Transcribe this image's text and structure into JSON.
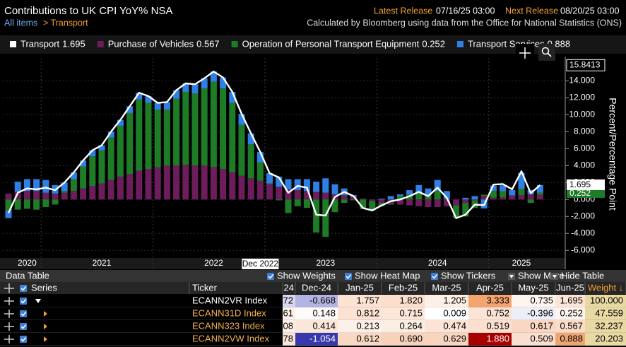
{
  "header": {
    "title": "Contributions to UK CPI YoY% NSA",
    "breadcrumb_root": "All items",
    "breadcrumb_current": "> Transport",
    "latest_label": "Latest Release",
    "latest_value": "07/16/25 03:00",
    "next_label": "Next Release",
    "next_value": "08/20/25 03:00",
    "source": "Calculated by Bloomberg using data from the Office for National Statistics (ONS)"
  },
  "chart_data": {
    "type": "bar",
    "stacked": true,
    "categories": [
      null,
      null,
      "2020",
      null,
      null,
      null,
      null,
      null,
      null,
      null,
      "2021",
      null,
      null,
      null,
      null,
      null,
      null,
      null,
      null,
      null,
      null,
      null,
      "2022",
      null,
      null,
      null,
      null,
      null,
      null,
      null,
      null,
      null,
      null,
      null,
      "2023",
      null,
      null,
      null,
      null,
      null,
      null,
      null,
      null,
      null,
      null,
      null,
      "2024",
      null,
      null,
      null,
      null,
      null,
      null,
      null,
      null,
      "2025",
      null,
      null
    ],
    "series": [
      {
        "name": "Transport",
        "legend_value": "1.695",
        "type": "line",
        "color": "#ffffff",
        "values": [
          -1.6,
          0.8,
          1.3,
          1.2,
          1.4,
          1.1,
          2.0,
          3.2,
          4.6,
          5.8,
          6.4,
          8.0,
          9.4,
          11.0,
          12.6,
          12.2,
          11.4,
          11.5,
          12.9,
          13.7,
          13.6,
          14.3,
          15.1,
          14.4,
          12.7,
          10.1,
          7.8,
          5.6,
          3.1,
          2.6,
          0.8,
          1.6,
          1.4,
          -1.8,
          -1.9,
          0.3,
          0.9,
          0.4,
          -1.0,
          -1.3,
          -0.7,
          -0.2,
          0.0,
          0.4,
          0.9,
          0.4,
          1.4,
          0.2,
          -2.2,
          -1.8,
          -0.6,
          -0.668,
          1.757,
          1.82,
          1.205,
          3.333,
          0.735,
          1.695
        ]
      },
      {
        "name": "Purchase of Vehicles",
        "legend_value": "0.567",
        "type": "bar",
        "color": "#6d1d5b",
        "values": [
          0.7,
          0.9,
          1.0,
          1.0,
          0.8,
          0.7,
          0.8,
          1.0,
          1.3,
          1.6,
          1.9,
          2.3,
          2.7,
          3.0,
          3.4,
          3.6,
          3.8,
          4.0,
          4.0,
          4.1,
          4.0,
          4.0,
          3.8,
          3.6,
          3.2,
          2.8,
          2.5,
          2.2,
          1.8,
          1.5,
          1.2,
          1.1,
          1.0,
          0.9,
          0.8,
          0.6,
          0.5,
          0.3,
          0.1,
          -0.2,
          -0.4,
          -0.5,
          -0.6,
          -0.7,
          -0.8,
          -0.9,
          -0.9,
          -0.8,
          -0.7,
          -0.4,
          -0.1,
          0.414,
          0.213,
          0.264,
          0.474,
          0.519,
          0.617,
          0.567
        ]
      },
      {
        "name": "Operation of Personal Transport Equipment",
        "legend_value": "0.252",
        "type": "bar",
        "color": "#1e7b26",
        "values": [
          -1.3,
          -1.2,
          -1.1,
          -1.2,
          -0.9,
          -0.6,
          0.2,
          1.4,
          2.6,
          3.5,
          3.9,
          5.0,
          6.0,
          7.2,
          8.4,
          7.8,
          6.8,
          6.6,
          7.9,
          8.6,
          8.5,
          9.1,
          10.1,
          9.5,
          8.2,
          6.0,
          4.0,
          2.2,
          0.1,
          -0.1,
          -1.6,
          -0.8,
          -1.0,
          -3.9,
          -4.4,
          -1.5,
          -0.4,
          -0.1,
          -1.0,
          -0.9,
          -0.4,
          -0.1,
          0.4,
          0.6,
          0.9,
          0.5,
          1.0,
          0.1,
          -1.5,
          -1.6,
          -0.9,
          0.148,
          0.812,
          0.715,
          0.009,
          0.752,
          -0.396,
          0.252
        ]
      },
      {
        "name": "Transport Services",
        "legend_value": "0.888",
        "type": "bar",
        "color": "#2f80e6",
        "values": [
          -0.9,
          1.2,
          1.4,
          1.4,
          1.5,
          1.0,
          1.0,
          0.8,
          0.7,
          0.7,
          0.6,
          0.7,
          0.7,
          0.8,
          0.8,
          0.8,
          0.8,
          0.9,
          1.0,
          1.0,
          1.1,
          1.2,
          1.2,
          1.3,
          1.3,
          1.3,
          1.3,
          1.2,
          1.2,
          1.2,
          1.2,
          1.3,
          1.4,
          1.2,
          1.7,
          1.2,
          0.8,
          0.2,
          -0.1,
          -0.2,
          0.1,
          0.4,
          0.2,
          0.5,
          0.8,
          0.8,
          1.3,
          0.9,
          0.0,
          0.2,
          0.4,
          -1.054,
          0.612,
          0.69,
          0.629,
          1.88,
          0.509,
          0.888
        ]
      }
    ],
    "ylim": [
      -6.9,
      16.7
    ],
    "yticks": [
      {
        "value": -6,
        "label": "-6.000"
      },
      {
        "value": -4,
        "label": "-4.000"
      },
      {
        "value": -2,
        "label": "-2.000"
      },
      {
        "value": 0,
        "label": "0.000"
      },
      {
        "value": 2,
        "label": "2.000"
      },
      {
        "value": 4,
        "label": "4.000"
      },
      {
        "value": 6,
        "label": "6.000"
      },
      {
        "value": 8,
        "label": "8.000"
      },
      {
        "value": 10,
        "label": "10.000"
      },
      {
        "value": 12,
        "label": "12.000"
      },
      {
        "value": 14,
        "label": "14.000"
      }
    ],
    "y_label": "Percent/Percentage Point",
    "max_marker": 15.8413,
    "crosshair_label": "Dec 2022",
    "grid": true
  },
  "table": {
    "title": "Data Table",
    "toolbar_items": [
      "Show Weights",
      "Show Heat Map",
      "Show Tickers",
      "Show More",
      "Hide Table"
    ],
    "columns": [
      "Series",
      "Ticker",
      "24",
      "Dec-24",
      "Jan-25",
      "Feb-25",
      "Mar-25",
      "Apr-25",
      "May-25",
      "Jun-25",
      "Weight ↓"
    ],
    "rows": [
      {
        "series": "Transport",
        "ticker": "ECANN2VR Index",
        "cells": [
          "72",
          "-0.668",
          "1.757",
          "1.820",
          "1.205",
          "3.333",
          "0.735",
          "1.695"
        ],
        "weight": "100.000",
        "heat": [
          "#d6d6ee",
          "#b4b4e4",
          "#fbe2d2",
          "#fbdfcc",
          "#fdf0e7",
          "#f3a46f",
          "#fff5ef",
          "#fbe5d7"
        ]
      },
      {
        "series": "Operation of Personal Transp",
        "ticker": "ECANN31D Index",
        "cells": [
          "61",
          "0.148",
          "0.812",
          "0.715",
          "0.009",
          "0.752",
          "-0.396",
          "0.252"
        ],
        "weight": "47.559",
        "heat": [
          "#fdeee6",
          "#fdfbfa",
          "#fbe2d3",
          "#fbe6d9",
          "#ffffff",
          "#fbe4d6",
          "#eeeef9",
          "#fdf4ee"
        ]
      },
      {
        "series": "Purchase of Vehicles",
        "ticker": "ECANN323 Index",
        "cells": [
          "08",
          "0.414",
          "0.213",
          "0.264",
          "0.474",
          "0.519",
          "0.617",
          "0.567"
        ],
        "weight": "32.237",
        "heat": [
          "#fdf0e8",
          "#fbe7da",
          "#fdf0e8",
          "#fcede3",
          "#fbe3d5",
          "#fbe0d0",
          "#f9d7c2",
          "#fadcc8"
        ]
      },
      {
        "series": "Transport Services",
        "ticker": "ECANN2VW Index",
        "cells": [
          "78",
          "-1.054",
          "0.612",
          "0.690",
          "0.629",
          "1.880",
          "0.509",
          "0.888"
        ],
        "weight": "20.203",
        "heat": [
          "#fbe3d5",
          "#3838ad",
          "#f9d7c3",
          "#f8d1ba",
          "#f8d5bf",
          "#a80000",
          "#fadfce",
          "#f0a472"
        ]
      }
    ]
  }
}
